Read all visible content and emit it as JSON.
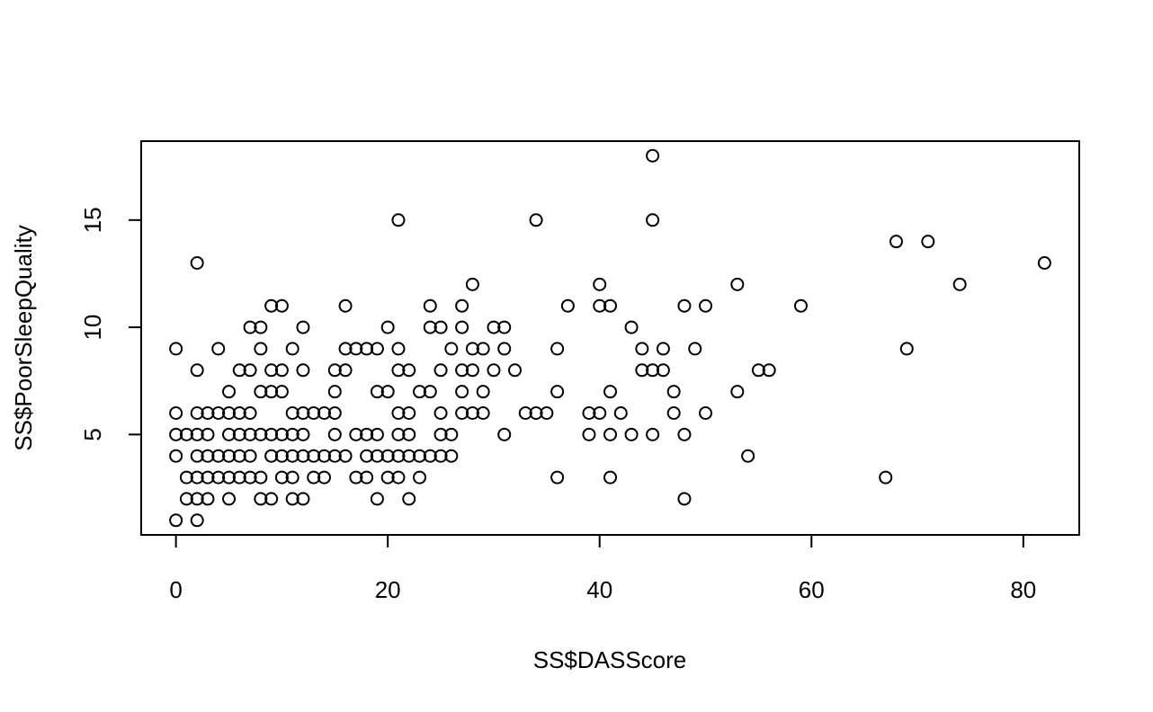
{
  "chart_data": {
    "type": "scatter",
    "title": "",
    "xlabel": "SS$DASScore",
    "ylabel": "SS$PoorSleepQuality",
    "xlim": [
      -3.28,
      85.28
    ],
    "ylim": [
      0.32,
      18.68
    ],
    "xticks": [
      0,
      20,
      40,
      60,
      80
    ],
    "yticks": [
      5,
      10,
      15
    ],
    "xtick_labels": [
      "0",
      "20",
      "40",
      "60",
      "80"
    ],
    "ytick_labels": [
      "5",
      "10",
      "15"
    ],
    "grid": false,
    "legend": "none",
    "marker": "open-circle",
    "points": [
      [
        0,
        1
      ],
      [
        0,
        4
      ],
      [
        0,
        5
      ],
      [
        0,
        6
      ],
      [
        0,
        9
      ],
      [
        1,
        2
      ],
      [
        1,
        3
      ],
      [
        1,
        5
      ],
      [
        2,
        1
      ],
      [
        2,
        2
      ],
      [
        2,
        3
      ],
      [
        2,
        4
      ],
      [
        2,
        5
      ],
      [
        2,
        6
      ],
      [
        2,
        8
      ],
      [
        2,
        13
      ],
      [
        3,
        2
      ],
      [
        3,
        3
      ],
      [
        3,
        4
      ],
      [
        3,
        5
      ],
      [
        3,
        6
      ],
      [
        4,
        3
      ],
      [
        4,
        4
      ],
      [
        4,
        6
      ],
      [
        4,
        9
      ],
      [
        5,
        2
      ],
      [
        5,
        3
      ],
      [
        5,
        4
      ],
      [
        5,
        5
      ],
      [
        5,
        6
      ],
      [
        5,
        7
      ],
      [
        6,
        3
      ],
      [
        6,
        4
      ],
      [
        6,
        5
      ],
      [
        6,
        6
      ],
      [
        6,
        8
      ],
      [
        7,
        3
      ],
      [
        7,
        4
      ],
      [
        7,
        5
      ],
      [
        7,
        6
      ],
      [
        7,
        8
      ],
      [
        7,
        10
      ],
      [
        8,
        2
      ],
      [
        8,
        3
      ],
      [
        8,
        5
      ],
      [
        8,
        7
      ],
      [
        8,
        9
      ],
      [
        8,
        10
      ],
      [
        9,
        2
      ],
      [
        9,
        4
      ],
      [
        9,
        5
      ],
      [
        9,
        7
      ],
      [
        9,
        8
      ],
      [
        9,
        11
      ],
      [
        10,
        3
      ],
      [
        10,
        4
      ],
      [
        10,
        5
      ],
      [
        10,
        7
      ],
      [
        10,
        8
      ],
      [
        10,
        11
      ],
      [
        11,
        2
      ],
      [
        11,
        3
      ],
      [
        11,
        4
      ],
      [
        11,
        5
      ],
      [
        11,
        6
      ],
      [
        11,
        9
      ],
      [
        12,
        2
      ],
      [
        12,
        4
      ],
      [
        12,
        5
      ],
      [
        12,
        6
      ],
      [
        12,
        8
      ],
      [
        12,
        10
      ],
      [
        13,
        3
      ],
      [
        13,
        4
      ],
      [
        13,
        6
      ],
      [
        14,
        3
      ],
      [
        14,
        4
      ],
      [
        14,
        6
      ],
      [
        15,
        4
      ],
      [
        15,
        5
      ],
      [
        15,
        6
      ],
      [
        15,
        7
      ],
      [
        15,
        8
      ],
      [
        16,
        4
      ],
      [
        16,
        8
      ],
      [
        16,
        9
      ],
      [
        16,
        11
      ],
      [
        17,
        3
      ],
      [
        17,
        5
      ],
      [
        17,
        9
      ],
      [
        18,
        3
      ],
      [
        18,
        4
      ],
      [
        18,
        5
      ],
      [
        18,
        9
      ],
      [
        19,
        2
      ],
      [
        19,
        4
      ],
      [
        19,
        5
      ],
      [
        19,
        7
      ],
      [
        19,
        9
      ],
      [
        20,
        3
      ],
      [
        20,
        4
      ],
      [
        20,
        7
      ],
      [
        20,
        10
      ],
      [
        21,
        3
      ],
      [
        21,
        4
      ],
      [
        21,
        5
      ],
      [
        21,
        6
      ],
      [
        21,
        8
      ],
      [
        21,
        9
      ],
      [
        21,
        15
      ],
      [
        22,
        2
      ],
      [
        22,
        4
      ],
      [
        22,
        5
      ],
      [
        22,
        6
      ],
      [
        22,
        8
      ],
      [
        23,
        3
      ],
      [
        23,
        4
      ],
      [
        23,
        7
      ],
      [
        24,
        4
      ],
      [
        24,
        7
      ],
      [
        24,
        10
      ],
      [
        24,
        11
      ],
      [
        25,
        4
      ],
      [
        25,
        5
      ],
      [
        25,
        6
      ],
      [
        25,
        8
      ],
      [
        25,
        10
      ],
      [
        26,
        4
      ],
      [
        26,
        5
      ],
      [
        26,
        9
      ],
      [
        27,
        6
      ],
      [
        27,
        7
      ],
      [
        27,
        8
      ],
      [
        27,
        10
      ],
      [
        27,
        11
      ],
      [
        28,
        6
      ],
      [
        28,
        8
      ],
      [
        28,
        9
      ],
      [
        28,
        12
      ],
      [
        29,
        6
      ],
      [
        29,
        7
      ],
      [
        29,
        9
      ],
      [
        30,
        8
      ],
      [
        30,
        10
      ],
      [
        31,
        5
      ],
      [
        31,
        9
      ],
      [
        31,
        10
      ],
      [
        32,
        8
      ],
      [
        33,
        6
      ],
      [
        34,
        6
      ],
      [
        34,
        15
      ],
      [
        35,
        6
      ],
      [
        36,
        3
      ],
      [
        36,
        7
      ],
      [
        36,
        9
      ],
      [
        37,
        11
      ],
      [
        39,
        5
      ],
      [
        39,
        6
      ],
      [
        40,
        6
      ],
      [
        40,
        11
      ],
      [
        40,
        12
      ],
      [
        41,
        3
      ],
      [
        41,
        5
      ],
      [
        41,
        7
      ],
      [
        41,
        11
      ],
      [
        42,
        6
      ],
      [
        43,
        5
      ],
      [
        43,
        10
      ],
      [
        44,
        8
      ],
      [
        44,
        9
      ],
      [
        45,
        5
      ],
      [
        45,
        8
      ],
      [
        45,
        15
      ],
      [
        45,
        18
      ],
      [
        46,
        8
      ],
      [
        46,
        9
      ],
      [
        47,
        6
      ],
      [
        47,
        7
      ],
      [
        48,
        2
      ],
      [
        48,
        5
      ],
      [
        48,
        11
      ],
      [
        49,
        9
      ],
      [
        50,
        6
      ],
      [
        50,
        11
      ],
      [
        53,
        7
      ],
      [
        53,
        12
      ],
      [
        54,
        4
      ],
      [
        55,
        8
      ],
      [
        56,
        8
      ],
      [
        59,
        11
      ],
      [
        67,
        3
      ],
      [
        68,
        14
      ],
      [
        69,
        9
      ],
      [
        71,
        14
      ],
      [
        74,
        12
      ],
      [
        82,
        13
      ]
    ]
  }
}
